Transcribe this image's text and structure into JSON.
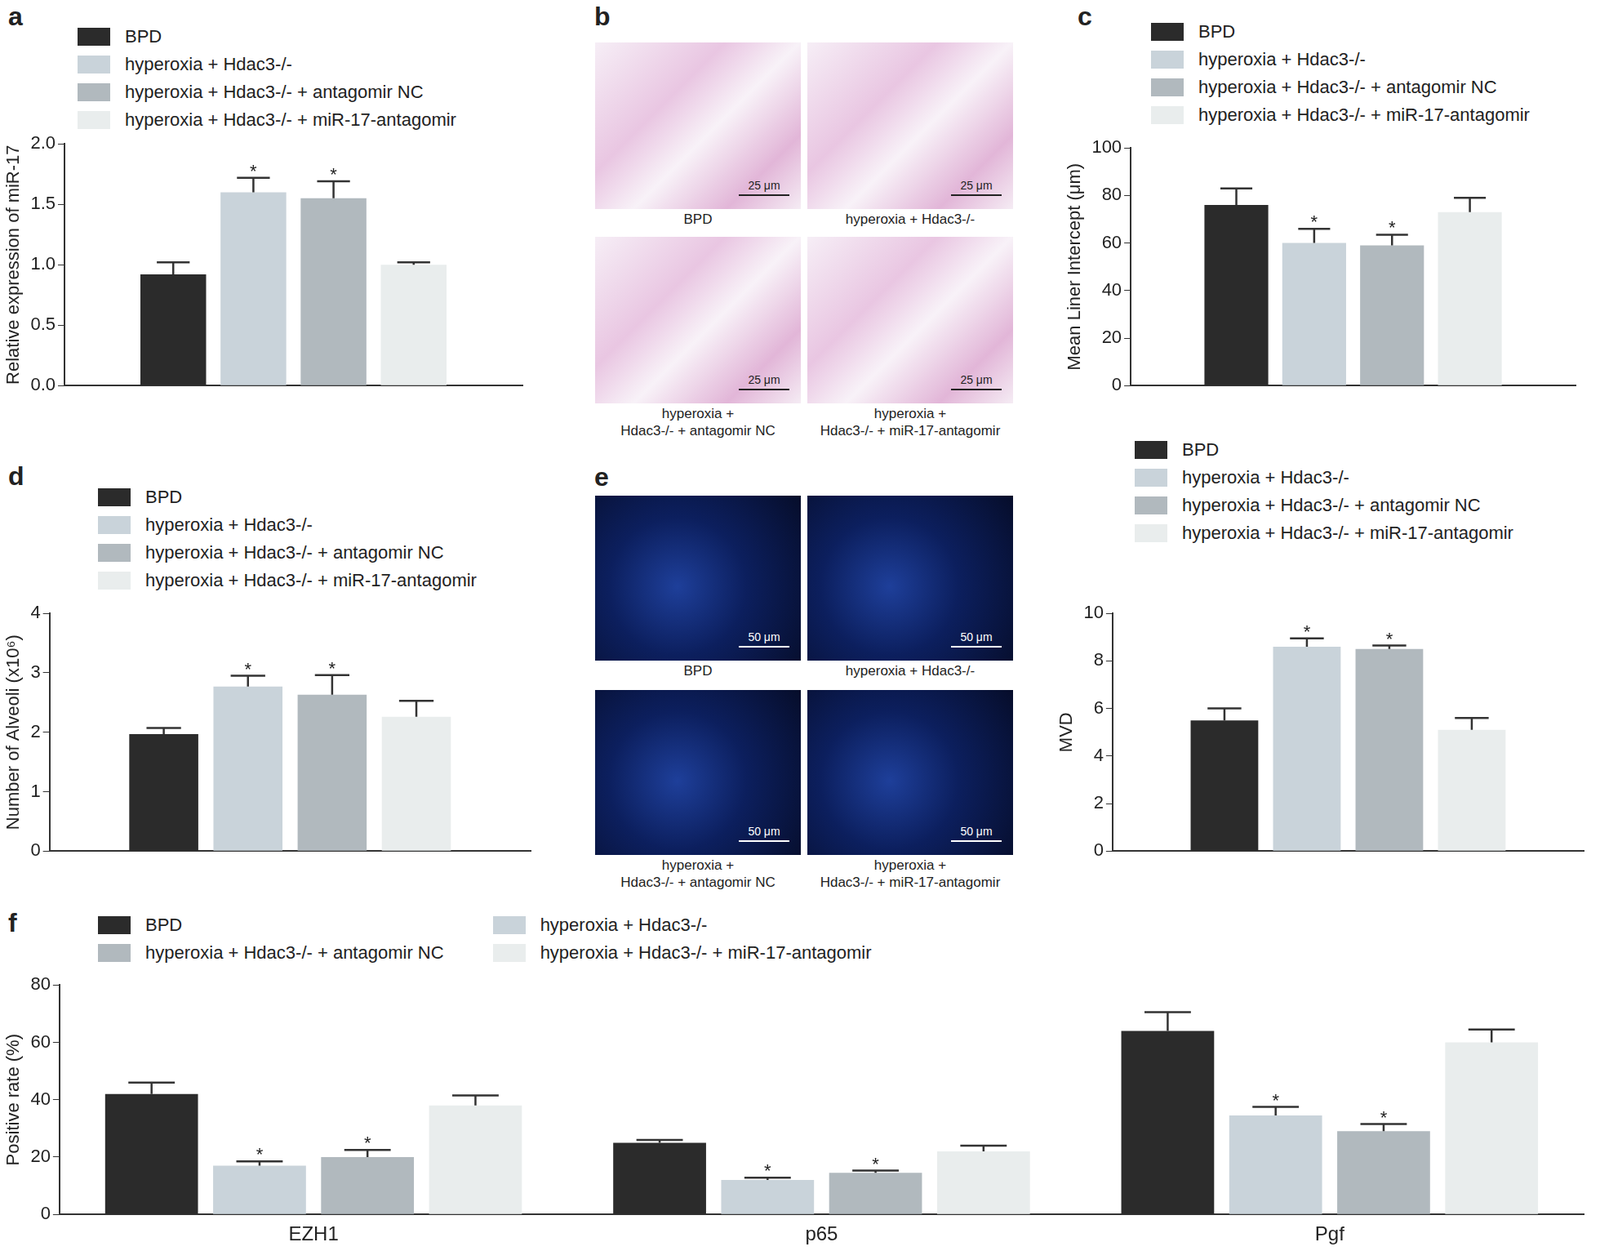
{
  "chart_data": [
    {
      "panel": "a",
      "type": "bar",
      "y_label": "Relative expression of miR-17",
      "categories": [
        null
      ],
      "ylim": [
        0,
        2
      ],
      "yticks": [
        {
          "value": 0,
          "label": "0.0"
        },
        {
          "value": 0.5,
          "label": "0.5"
        },
        {
          "value": 1,
          "label": "1.0"
        },
        {
          "value": 1.5,
          "label": "1.5"
        },
        {
          "value": 2,
          "label": "2.0"
        }
      ],
      "grid": false,
      "legend": "top-left",
      "series": [
        {
          "name": "BPD",
          "color": "#2b2b2b",
          "values": [
            0.92
          ],
          "errors": [
            0.1
          ]
        },
        {
          "name": "hyperoxia + Hdac3-/-",
          "color": "#c9d3da",
          "values": [
            1.6
          ],
          "errors": [
            0.12
          ],
          "marks": [
            "*"
          ]
        },
        {
          "name": "hyperoxia + Hdac3-/- + antagomir NC",
          "color": "#b1b9be",
          "values": [
            1.55
          ],
          "errors": [
            0.14
          ],
          "marks": [
            "*"
          ]
        },
        {
          "name": "hyperoxia + Hdac3-/- + miR-17-antagomir",
          "color": "#e9eded",
          "values": [
            1.0
          ],
          "errors": [
            0.02
          ]
        }
      ]
    },
    {
      "panel": "c",
      "type": "bar",
      "y_label": "Mean Liner Intercept (μm)",
      "categories": [
        null
      ],
      "ylim": [
        0,
        100
      ],
      "yticks": [
        0,
        20,
        40,
        60,
        80,
        100
      ],
      "grid": false,
      "legend": "top-left",
      "series": [
        {
          "name": "BPD",
          "color": "#2b2b2b",
          "values": [
            76
          ],
          "errors": [
            7
          ]
        },
        {
          "name": "hyperoxia + Hdac3-/-",
          "color": "#c9d3da",
          "values": [
            60
          ],
          "errors": [
            6
          ],
          "marks": [
            "*"
          ]
        },
        {
          "name": "hyperoxia + Hdac3-/- + antagomir NC",
          "color": "#b1b9be",
          "values": [
            59
          ],
          "errors": [
            4.5
          ],
          "marks": [
            "*"
          ]
        },
        {
          "name": "hyperoxia + Hdac3-/- + miR-17-antagomir",
          "color": "#e9eded",
          "values": [
            73
          ],
          "errors": [
            6
          ]
        }
      ]
    },
    {
      "panel": "d",
      "type": "bar",
      "y_label": "Number of Alveoli (x10⁶)",
      "categories": [
        null
      ],
      "ylim": [
        0,
        4
      ],
      "yticks": [
        0,
        1,
        2,
        3,
        4
      ],
      "grid": false,
      "legend": "top-left",
      "series": [
        {
          "name": "BPD",
          "color": "#2b2b2b",
          "values": [
            1.97
          ],
          "errors": [
            0.1
          ]
        },
        {
          "name": "hyperoxia + Hdac3-/-",
          "color": "#c9d3da",
          "values": [
            2.77
          ],
          "errors": [
            0.18
          ],
          "marks": [
            "*"
          ]
        },
        {
          "name": "hyperoxia + Hdac3-/- + antagomir NC",
          "color": "#b1b9be",
          "values": [
            2.63
          ],
          "errors": [
            0.33
          ],
          "marks": [
            "*"
          ]
        },
        {
          "name": "hyperoxia + Hdac3-/- + miR-17-antagomir",
          "color": "#e9eded",
          "values": [
            2.26
          ],
          "errors": [
            0.27
          ]
        }
      ]
    },
    {
      "type": "bar",
      "y_label": "MVD",
      "categories": [
        null
      ],
      "ylim": [
        0,
        10
      ],
      "yticks": [
        0,
        2,
        4,
        6,
        8,
        10
      ],
      "grid": false,
      "legend": "top-left",
      "series": [
        {
          "name": "BPD",
          "color": "#2b2b2b",
          "values": [
            5.5
          ],
          "errors": [
            0.5
          ]
        },
        {
          "name": "hyperoxia + Hdac3-/-",
          "color": "#c9d3da",
          "values": [
            8.6
          ],
          "errors": [
            0.35
          ],
          "marks": [
            "*"
          ]
        },
        {
          "name": "hyperoxia + Hdac3-/- + antagomir NC",
          "color": "#b1b9be",
          "values": [
            8.5
          ],
          "errors": [
            0.15
          ],
          "marks": [
            "*"
          ]
        },
        {
          "name": "hyperoxia + Hdac3-/- + miR-17-antagomir",
          "color": "#e9eded",
          "values": [
            5.1
          ],
          "errors": [
            0.5
          ]
        }
      ]
    },
    {
      "panel": "f",
      "type": "bar",
      "y_label": "Positive rate (%)",
      "categories": [
        "EZH1",
        "p65",
        "Pgf"
      ],
      "ylim": [
        0,
        80
      ],
      "yticks": [
        0,
        20,
        40,
        60,
        80
      ],
      "grid": false,
      "legend": "top-left",
      "series": [
        {
          "name": "BPD",
          "color": "#2b2b2b",
          "values": [
            42,
            25,
            64
          ],
          "errors": [
            4,
            1,
            6.5
          ]
        },
        {
          "name": "hyperoxia + Hdac3-/-",
          "color": "#c9d3da",
          "values": [
            17,
            12,
            34.5
          ],
          "errors": [
            1.5,
            0.8,
            3
          ],
          "marks": [
            "*",
            "*",
            "*"
          ]
        },
        {
          "name": "hyperoxia + Hdac3-/- + antagomir NC",
          "color": "#b1b9be",
          "values": [
            20,
            14.5,
            29
          ],
          "errors": [
            2.5,
            0.8,
            2.5
          ],
          "marks": [
            "*",
            "*",
            "*"
          ]
        },
        {
          "name": "hyperoxia + Hdac3-/- + miR-17-antagomir",
          "color": "#e9eded",
          "values": [
            38,
            22,
            60
          ],
          "errors": [
            3.5,
            2,
            4.5
          ]
        }
      ]
    }
  ],
  "images": [
    {
      "panel": "b",
      "scale_bar": "25 μm",
      "captions": [
        [
          "BPD"
        ],
        [
          "hyperoxia + Hdac3-/-"
        ],
        [
          "hyperoxia +",
          "Hdac3-/- + antagomir NC"
        ],
        [
          "hyperoxia +",
          "Hdac3-/- + miR-17-antagomir"
        ]
      ]
    },
    {
      "panel": "e",
      "scale_bar": "50 μm",
      "captions": [
        [
          "BPD"
        ],
        [
          "hyperoxia + Hdac3-/-"
        ],
        [
          "hyperoxia +",
          "Hdac3-/- + antagomir NC"
        ],
        [
          "hyperoxia +",
          "Hdac3-/- + miR-17-antagomir"
        ]
      ]
    }
  ]
}
